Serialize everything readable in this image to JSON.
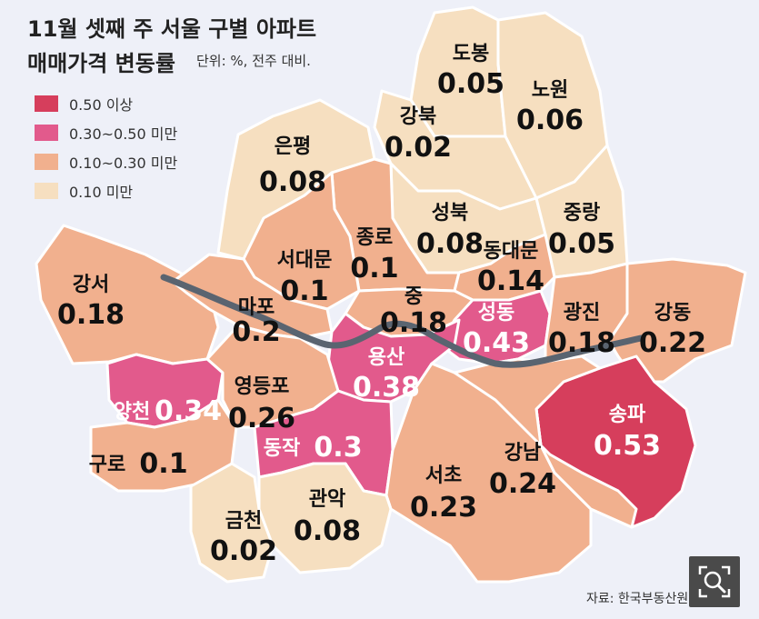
{
  "title_line1": "11월 셋째 주 서울 구별 아파트",
  "title_line2": "매매가격 변동률",
  "unit_note": "단위: %, 전주 대비.",
  "source": "자료: 한국부동산원",
  "colors": {
    "level4": "#d63e5c",
    "level3": "#e25a8c",
    "level2": "#f1b08e",
    "level1": "#f6dfc0",
    "river": "#5a6470",
    "background": "#eef0f8"
  },
  "legend": [
    {
      "label": "0.50 이상",
      "color": "#d63e5c"
    },
    {
      "label": "0.30~0.50 미만",
      "color": "#e25a8c"
    },
    {
      "label": "0.10~0.30 미만",
      "color": "#f1b08e"
    },
    {
      "label": "0.10 미만",
      "color": "#f6dfc0"
    }
  ],
  "districts": [
    {
      "name": "도봉",
      "value": "0.05"
    },
    {
      "name": "노원",
      "value": "0.06"
    },
    {
      "name": "강북",
      "value": "0.02"
    },
    {
      "name": "은평",
      "value": "0.08"
    },
    {
      "name": "성북",
      "value": "0.08"
    },
    {
      "name": "중랑",
      "value": "0.05"
    },
    {
      "name": "종로",
      "value": "0.1"
    },
    {
      "name": "서대문",
      "value": "0.1"
    },
    {
      "name": "동대문",
      "value": "0.14"
    },
    {
      "name": "강서",
      "value": "0.18"
    },
    {
      "name": "마포",
      "value": "0.2"
    },
    {
      "name": "중",
      "value": "0.18"
    },
    {
      "name": "성동",
      "value": "0.43"
    },
    {
      "name": "광진",
      "value": "0.18"
    },
    {
      "name": "강동",
      "value": "0.22"
    },
    {
      "name": "용산",
      "value": "0.38"
    },
    {
      "name": "양천",
      "value": "0.34"
    },
    {
      "name": "영등포",
      "value": "0.26"
    },
    {
      "name": "송파",
      "value": "0.53"
    },
    {
      "name": "구로",
      "value": "0.1"
    },
    {
      "name": "동작",
      "value": "0.3"
    },
    {
      "name": "서초",
      "value": "0.23"
    },
    {
      "name": "강남",
      "value": "0.24"
    },
    {
      "name": "금천",
      "value": "0.02"
    },
    {
      "name": "관악",
      "value": "0.08"
    }
  ]
}
